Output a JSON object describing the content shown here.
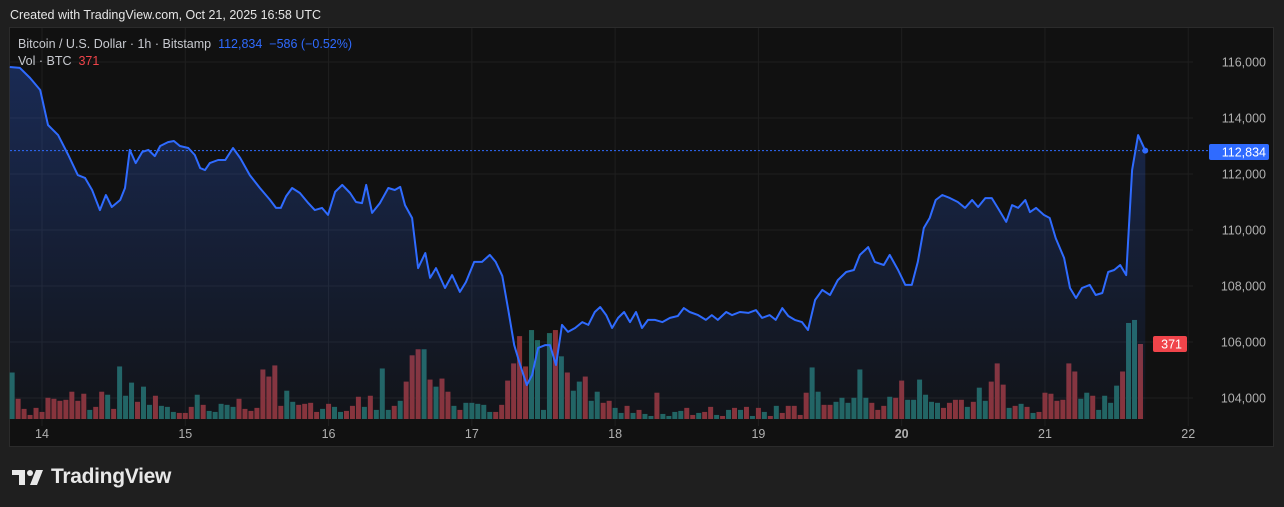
{
  "credit": "Created with TradingView.com, Oct 21, 2025 16:58 UTC",
  "legend": {
    "symbol": "Bitcoin / U.S. Dollar · 1h · Bitstamp",
    "last_price": "112,834",
    "change": "−586 (−0.52%)",
    "volume_label": "Vol · BTC",
    "volume_value": "371"
  },
  "price_badge": "112,834",
  "volume_badge": "371",
  "brand": "TradingView",
  "colors": {
    "line": "#2f6bff",
    "up": "#22655f",
    "down": "#8a3236",
    "badge_price": "#2f6bff",
    "badge_volume": "#f0444a"
  },
  "chart_data": {
    "type": "line",
    "title": "Bitcoin / U.S. Dollar · 1h · Bitstamp",
    "x_unit": "hours since Oct 14 00:00 UTC",
    "price_ticks": [
      "104,000",
      "106,000",
      "108,000",
      "110,000",
      "112,000",
      "114,000",
      "116,000"
    ],
    "price_tick_values": [
      104000,
      106000,
      108000,
      110000,
      112000,
      114000,
      116000
    ],
    "time_ticks": [
      {
        "label": "14",
        "h": 0
      },
      {
        "label": "15",
        "h": 24
      },
      {
        "label": "16",
        "h": 48
      },
      {
        "label": "17",
        "h": 72
      },
      {
        "label": "18",
        "h": 96
      },
      {
        "label": "19",
        "h": 120
      },
      {
        "label": "20",
        "h": 144,
        "bold": true
      },
      {
        "label": "21",
        "h": 168
      },
      {
        "label": "22",
        "h": 192
      }
    ],
    "ylim": [
      103300,
      117100
    ],
    "last_price": 112834,
    "price": [
      [
        -5.4,
        115820
      ],
      [
        -3.7,
        115790
      ],
      [
        -2.0,
        115430
      ],
      [
        -0.3,
        115000
      ],
      [
        1.0,
        113750
      ],
      [
        2.7,
        113390
      ],
      [
        4.4,
        112680
      ],
      [
        6.0,
        111960
      ],
      [
        7.2,
        111860
      ],
      [
        8.4,
        111430
      ],
      [
        9.7,
        110710
      ],
      [
        10.7,
        111250
      ],
      [
        11.7,
        110820
      ],
      [
        13.1,
        111070
      ],
      [
        13.9,
        111500
      ],
      [
        14.7,
        112860
      ],
      [
        15.7,
        112390
      ],
      [
        16.8,
        112790
      ],
      [
        17.8,
        112860
      ],
      [
        18.9,
        112640
      ],
      [
        19.8,
        113000
      ],
      [
        21.1,
        113140
      ],
      [
        22.1,
        113180
      ],
      [
        23.1,
        113000
      ],
      [
        24.5,
        112930
      ],
      [
        25.6,
        112680
      ],
      [
        26.5,
        112210
      ],
      [
        27.3,
        112140
      ],
      [
        28.1,
        112390
      ],
      [
        29.5,
        112500
      ],
      [
        30.7,
        112500
      ],
      [
        32.0,
        112930
      ],
      [
        33.2,
        112570
      ],
      [
        34.8,
        111960
      ],
      [
        36.5,
        111500
      ],
      [
        38.2,
        111070
      ],
      [
        39.2,
        110790
      ],
      [
        40.0,
        110790
      ],
      [
        40.9,
        111210
      ],
      [
        41.9,
        111500
      ],
      [
        43.2,
        111320
      ],
      [
        44.6,
        110960
      ],
      [
        45.7,
        110710
      ],
      [
        46.9,
        110790
      ],
      [
        47.9,
        110540
      ],
      [
        49.1,
        111360
      ],
      [
        50.3,
        111610
      ],
      [
        51.6,
        111320
      ],
      [
        52.6,
        111000
      ],
      [
        53.6,
        110960
      ],
      [
        54.3,
        111610
      ],
      [
        55.3,
        110610
      ],
      [
        56.6,
        110960
      ],
      [
        58.0,
        111500
      ],
      [
        59.1,
        111430
      ],
      [
        60.0,
        111540
      ],
      [
        60.8,
        110890
      ],
      [
        62.0,
        110430
      ],
      [
        63.0,
        108640
      ],
      [
        64.2,
        109180
      ],
      [
        65.0,
        108290
      ],
      [
        66.0,
        108640
      ],
      [
        67.5,
        107930
      ],
      [
        68.7,
        108390
      ],
      [
        70.0,
        107790
      ],
      [
        71.0,
        108140
      ],
      [
        72.4,
        108860
      ],
      [
        73.7,
        108860
      ],
      [
        75.0,
        109110
      ],
      [
        76.0,
        108860
      ],
      [
        77.1,
        108360
      ],
      [
        78.1,
        107140
      ],
      [
        79.1,
        105890
      ],
      [
        80.1,
        105180
      ],
      [
        81.2,
        104460
      ],
      [
        82.1,
        104820
      ],
      [
        83.1,
        105790
      ],
      [
        84.3,
        105890
      ],
      [
        85.1,
        105890
      ],
      [
        86.1,
        105180
      ],
      [
        87.1,
        106610
      ],
      [
        88.1,
        106360
      ],
      [
        89.3,
        106500
      ],
      [
        90.5,
        106710
      ],
      [
        91.5,
        106610
      ],
      [
        92.6,
        107070
      ],
      [
        93.5,
        107250
      ],
      [
        94.5,
        106960
      ],
      [
        95.5,
        106500
      ],
      [
        96.5,
        106860
      ],
      [
        97.5,
        107070
      ],
      [
        98.5,
        106710
      ],
      [
        99.5,
        107070
      ],
      [
        100.5,
        106500
      ],
      [
        101.5,
        106790
      ],
      [
        102.7,
        106790
      ],
      [
        103.9,
        106710
      ],
      [
        105.2,
        106860
      ],
      [
        106.5,
        106930
      ],
      [
        107.5,
        107210
      ],
      [
        108.5,
        107070
      ],
      [
        109.9,
        106960
      ],
      [
        111.2,
        106790
      ],
      [
        112.2,
        106960
      ],
      [
        113.2,
        106790
      ],
      [
        114.6,
        107070
      ],
      [
        115.6,
        106960
      ],
      [
        116.9,
        107070
      ],
      [
        118.3,
        107040
      ],
      [
        119.6,
        107140
      ],
      [
        120.6,
        106860
      ],
      [
        121.9,
        106960
      ],
      [
        122.9,
        106790
      ],
      [
        124.0,
        107210
      ],
      [
        125.0,
        106930
      ],
      [
        126.1,
        106790
      ],
      [
        127.3,
        106710
      ],
      [
        128.3,
        106430
      ],
      [
        129.5,
        107500
      ],
      [
        130.7,
        107860
      ],
      [
        132.0,
        107680
      ],
      [
        133.3,
        108210
      ],
      [
        134.7,
        108500
      ],
      [
        136.0,
        108570
      ],
      [
        137.0,
        109110
      ],
      [
        138.4,
        109390
      ],
      [
        139.5,
        108860
      ],
      [
        141.0,
        108750
      ],
      [
        142.0,
        109110
      ],
      [
        143.4,
        108570
      ],
      [
        144.6,
        108040
      ],
      [
        145.7,
        108040
      ],
      [
        146.7,
        108860
      ],
      [
        147.7,
        110070
      ],
      [
        148.7,
        110430
      ],
      [
        149.7,
        111070
      ],
      [
        150.8,
        111250
      ],
      [
        152.1,
        111140
      ],
      [
        153.4,
        111000
      ],
      [
        154.6,
        110790
      ],
      [
        155.8,
        111070
      ],
      [
        156.8,
        110820
      ],
      [
        158.0,
        111140
      ],
      [
        159.1,
        111140
      ],
      [
        160.1,
        110790
      ],
      [
        161.5,
        110290
      ],
      [
        162.5,
        110890
      ],
      [
        163.5,
        110790
      ],
      [
        164.7,
        111070
      ],
      [
        165.5,
        110640
      ],
      [
        166.5,
        110790
      ],
      [
        167.8,
        110540
      ],
      [
        168.8,
        110430
      ],
      [
        169.8,
        109710
      ],
      [
        171.2,
        109000
      ],
      [
        172.2,
        107930
      ],
      [
        173.2,
        107570
      ],
      [
        174.2,
        107930
      ],
      [
        175.5,
        108040
      ],
      [
        176.5,
        107680
      ],
      [
        177.6,
        107750
      ],
      [
        178.6,
        108500
      ],
      [
        179.6,
        108570
      ],
      [
        180.6,
        108750
      ],
      [
        181.6,
        108390
      ],
      [
        182.6,
        112140
      ],
      [
        183.6,
        113390
      ],
      [
        184.8,
        112834
      ]
    ],
    "volume_start_h": -5,
    "volume_last": 371,
    "volume": [
      [
        230,
        "u"
      ],
      [
        100,
        "d"
      ],
      [
        50,
        "d"
      ],
      [
        20,
        "d"
      ],
      [
        55,
        "d"
      ],
      [
        35,
        "d"
      ],
      [
        105,
        "d"
      ],
      [
        100,
        "d"
      ],
      [
        90,
        "d"
      ],
      [
        95,
        "d"
      ],
      [
        135,
        "d"
      ],
      [
        90,
        "d"
      ],
      [
        125,
        "d"
      ],
      [
        45,
        "u"
      ],
      [
        60,
        "d"
      ],
      [
        135,
        "d"
      ],
      [
        120,
        "u"
      ],
      [
        50,
        "d"
      ],
      [
        260,
        "u"
      ],
      [
        115,
        "u"
      ],
      [
        180,
        "u"
      ],
      [
        85,
        "d"
      ],
      [
        160,
        "u"
      ],
      [
        70,
        "u"
      ],
      [
        115,
        "d"
      ],
      [
        65,
        "u"
      ],
      [
        60,
        "u"
      ],
      [
        35,
        "u"
      ],
      [
        30,
        "d"
      ],
      [
        30,
        "d"
      ],
      [
        60,
        "d"
      ],
      [
        120,
        "u"
      ],
      [
        70,
        "d"
      ],
      [
        40,
        "u"
      ],
      [
        35,
        "u"
      ],
      [
        75,
        "u"
      ],
      [
        70,
        "u"
      ],
      [
        60,
        "u"
      ],
      [
        100,
        "d"
      ],
      [
        50,
        "d"
      ],
      [
        40,
        "d"
      ],
      [
        55,
        "d"
      ],
      [
        245,
        "d"
      ],
      [
        210,
        "d"
      ],
      [
        265,
        "d"
      ],
      [
        65,
        "d"
      ],
      [
        140,
        "u"
      ],
      [
        85,
        "u"
      ],
      [
        70,
        "d"
      ],
      [
        75,
        "d"
      ],
      [
        80,
        "d"
      ],
      [
        35,
        "d"
      ],
      [
        50,
        "u"
      ],
      [
        75,
        "d"
      ],
      [
        60,
        "u"
      ],
      [
        35,
        "u"
      ],
      [
        40,
        "d"
      ],
      [
        65,
        "d"
      ],
      [
        110,
        "d"
      ],
      [
        60,
        "u"
      ],
      [
        115,
        "d"
      ],
      [
        45,
        "u"
      ],
      [
        250,
        "u"
      ],
      [
        45,
        "u"
      ],
      [
        65,
        "d"
      ],
      [
        90,
        "u"
      ],
      [
        185,
        "d"
      ],
      [
        315,
        "d"
      ],
      [
        345,
        "d"
      ],
      [
        345,
        "u"
      ],
      [
        195,
        "d"
      ],
      [
        160,
        "u"
      ],
      [
        200,
        "d"
      ],
      [
        135,
        "d"
      ],
      [
        65,
        "u"
      ],
      [
        45,
        "d"
      ],
      [
        80,
        "u"
      ],
      [
        80,
        "u"
      ],
      [
        75,
        "u"
      ],
      [
        70,
        "u"
      ],
      [
        35,
        "u"
      ],
      [
        35,
        "d"
      ],
      [
        70,
        "d"
      ],
      [
        190,
        "d"
      ],
      [
        275,
        "d"
      ],
      [
        410,
        "d"
      ],
      [
        260,
        "d"
      ],
      [
        440,
        "u"
      ],
      [
        390,
        "u"
      ],
      [
        45,
        "u"
      ],
      [
        425,
        "u"
      ],
      [
        440,
        "d"
      ],
      [
        310,
        "u"
      ],
      [
        230,
        "d"
      ],
      [
        140,
        "u"
      ],
      [
        185,
        "u"
      ],
      [
        210,
        "d"
      ],
      [
        90,
        "u"
      ],
      [
        135,
        "u"
      ],
      [
        80,
        "d"
      ],
      [
        90,
        "d"
      ],
      [
        55,
        "u"
      ],
      [
        30,
        "u"
      ],
      [
        65,
        "d"
      ],
      [
        30,
        "u"
      ],
      [
        45,
        "d"
      ],
      [
        25,
        "u"
      ],
      [
        15,
        "u"
      ],
      [
        130,
        "d"
      ],
      [
        25,
        "u"
      ],
      [
        15,
        "u"
      ],
      [
        35,
        "u"
      ],
      [
        40,
        "u"
      ],
      [
        55,
        "d"
      ],
      [
        20,
        "d"
      ],
      [
        30,
        "u"
      ],
      [
        35,
        "d"
      ],
      [
        60,
        "d"
      ],
      [
        20,
        "u"
      ],
      [
        15,
        "d"
      ],
      [
        45,
        "u"
      ],
      [
        55,
        "d"
      ],
      [
        45,
        "u"
      ],
      [
        60,
        "d"
      ],
      [
        15,
        "u"
      ],
      [
        55,
        "d"
      ],
      [
        35,
        "u"
      ],
      [
        15,
        "d"
      ],
      [
        65,
        "u"
      ],
      [
        30,
        "d"
      ],
      [
        65,
        "d"
      ],
      [
        65,
        "d"
      ],
      [
        20,
        "d"
      ],
      [
        130,
        "d"
      ],
      [
        255,
        "u"
      ],
      [
        135,
        "u"
      ],
      [
        70,
        "d"
      ],
      [
        70,
        "d"
      ],
      [
        85,
        "u"
      ],
      [
        105,
        "u"
      ],
      [
        80,
        "u"
      ],
      [
        105,
        "u"
      ],
      [
        245,
        "u"
      ],
      [
        105,
        "u"
      ],
      [
        80,
        "d"
      ],
      [
        45,
        "d"
      ],
      [
        65,
        "d"
      ],
      [
        110,
        "u"
      ],
      [
        105,
        "d"
      ],
      [
        190,
        "d"
      ],
      [
        95,
        "u"
      ],
      [
        95,
        "u"
      ],
      [
        195,
        "u"
      ],
      [
        120,
        "u"
      ],
      [
        85,
        "u"
      ],
      [
        80,
        "u"
      ],
      [
        55,
        "d"
      ],
      [
        80,
        "d"
      ],
      [
        95,
        "d"
      ],
      [
        95,
        "d"
      ],
      [
        60,
        "u"
      ],
      [
        85,
        "d"
      ],
      [
        155,
        "u"
      ],
      [
        90,
        "u"
      ],
      [
        185,
        "d"
      ],
      [
        275,
        "d"
      ],
      [
        170,
        "d"
      ],
      [
        55,
        "u"
      ],
      [
        65,
        "d"
      ],
      [
        75,
        "u"
      ],
      [
        60,
        "d"
      ],
      [
        30,
        "u"
      ],
      [
        35,
        "d"
      ],
      [
        130,
        "d"
      ],
      [
        125,
        "d"
      ],
      [
        90,
        "d"
      ],
      [
        95,
        "d"
      ],
      [
        275,
        "d"
      ],
      [
        235,
        "d"
      ],
      [
        100,
        "u"
      ],
      [
        130,
        "u"
      ],
      [
        115,
        "d"
      ],
      [
        45,
        "u"
      ],
      [
        115,
        "u"
      ],
      [
        80,
        "u"
      ],
      [
        165,
        "u"
      ],
      [
        235,
        "d"
      ],
      [
        475,
        "u"
      ],
      [
        490,
        "u"
      ],
      [
        371,
        "d"
      ]
    ]
  }
}
